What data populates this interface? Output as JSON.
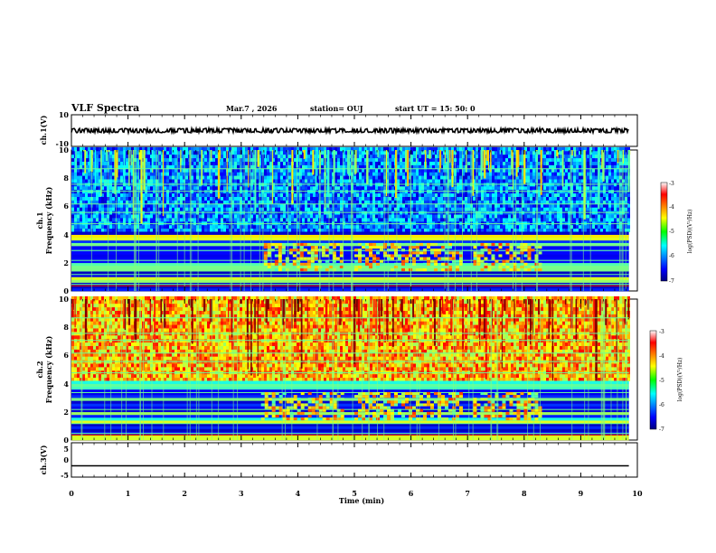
{
  "header": {
    "title": "VLF Spectra",
    "date": "Mar.7 , 2026",
    "station": "station= OUJ",
    "start": "start UT = 15: 50: 0"
  },
  "colors": {
    "trace": "#000000",
    "axis": "#000000"
  },
  "chart_data": [
    {
      "type": "line",
      "name": "ch1-waveform",
      "ylabel": "ch.1(V)",
      "ytick_labels": [
        "10",
        "-10"
      ],
      "ylim": [
        -10,
        10
      ],
      "xlim": [
        0,
        10
      ],
      "series": [
        {
          "name": "",
          "x": [
            0,
            9.85
          ],
          "y_center": 0,
          "amplitude": 1
        }
      ]
    },
    {
      "type": "heatmap",
      "name": "ch1-spectrogram",
      "ylabel": "ch.1",
      "ylabel2": "Frequency (kHz)",
      "xlim": [
        0,
        10
      ],
      "data_xmax": 9.85,
      "ylim": [
        0,
        10
      ],
      "yticks": [
        0,
        2,
        4,
        6,
        8,
        10
      ],
      "ytick_labels": [
        "0",
        "2",
        "4",
        "6",
        "8",
        "10"
      ],
      "colorbar": {
        "label": "log(PSD)(V²/Hz)",
        "range": [
          -7,
          -3
        ],
        "tick_labels": [
          "-3",
          "-4",
          "-5",
          "-6",
          "-7"
        ]
      },
      "level_upper": -6.0,
      "level_lower": -5.2,
      "mid_band_events": [
        [
          3.4,
          4.8
        ],
        [
          5.0,
          6.9
        ],
        [
          7.1,
          8.3
        ]
      ]
    },
    {
      "type": "heatmap",
      "name": "ch2-spectrogram",
      "ylabel": "ch.2",
      "ylabel2": "Frequency (kHz)",
      "xlim": [
        0,
        10
      ],
      "data_xmax": 9.85,
      "ylim": [
        0,
        10
      ],
      "yticks": [
        0,
        2,
        4,
        6,
        8,
        10
      ],
      "ytick_labels": [
        "0",
        "2",
        "4",
        "6",
        "8",
        "10"
      ],
      "colorbar": {
        "label": "log(PSD)(V²/Hz)",
        "range": [
          -7,
          -3
        ],
        "tick_labels": [
          "-3",
          "-4",
          "-5",
          "-6",
          "-7"
        ]
      },
      "level_upper": -4.2,
      "level_lower": -5.4,
      "mid_band_events": [
        [
          3.35,
          4.8
        ],
        [
          5.0,
          6.9
        ],
        [
          7.1,
          8.3
        ]
      ]
    },
    {
      "type": "line",
      "name": "ch3-waveform",
      "ylabel": "ch.3(V)",
      "ytick_labels": [
        "5",
        "0",
        "-5"
      ],
      "ylim": [
        -5,
        5
      ],
      "xlim": [
        0,
        10
      ],
      "xlabel": "Time (min)",
      "xticks": [
        0,
        1,
        2,
        3,
        4,
        5,
        6,
        7,
        8,
        9,
        10
      ],
      "xtick_labels": [
        "0",
        "1",
        "2",
        "3",
        "4",
        "5",
        "6",
        "7",
        "8",
        "9",
        "10"
      ],
      "series": [
        {
          "name": "",
          "x": [
            0,
            10
          ],
          "y": [
            -1.7,
            -1.7
          ]
        }
      ]
    }
  ]
}
